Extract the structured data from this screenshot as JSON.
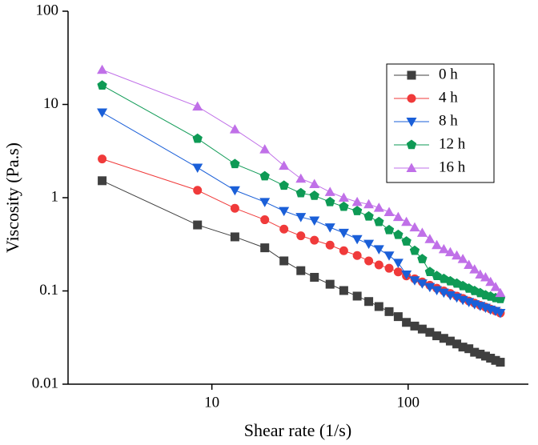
{
  "chart_data": {
    "type": "line",
    "x_label": "Shear rate (1/s)",
    "y_label": "Viscosity (Pa.s)",
    "log_x": true,
    "log_y": true,
    "grid": false,
    "legend_position": "upper right",
    "xlim": [
      1.85,
      410
    ],
    "ylim": [
      0.01,
      100
    ],
    "xticks": [
      10,
      100
    ],
    "yticks": [
      0.01,
      0.1,
      1,
      10,
      100
    ],
    "x": [
      2.76,
      8.45,
      13.1,
      18.6,
      23.3,
      28.4,
      33.3,
      40,
      47,
      55,
      63,
      71,
      80,
      89,
      98,
      108,
      118,
      129,
      140,
      152,
      164,
      177,
      190,
      204,
      218,
      233,
      248,
      263,
      279,
      295
    ],
    "series": [
      {
        "name": "0 h",
        "color": "#3f3f3f",
        "marker": "square",
        "values": [
          1.52,
          0.51,
          0.38,
          0.29,
          0.21,
          0.165,
          0.14,
          0.118,
          0.101,
          0.088,
          0.077,
          0.068,
          0.06,
          0.053,
          0.046,
          0.042,
          0.039,
          0.036,
          0.033,
          0.031,
          0.029,
          0.027,
          0.025,
          0.024,
          0.022,
          0.021,
          0.02,
          0.019,
          0.018,
          0.0172
        ]
      },
      {
        "name": "4 h",
        "color": "#f03a3a",
        "marker": "circle",
        "values": [
          2.6,
          1.2,
          0.77,
          0.58,
          0.46,
          0.39,
          0.35,
          0.31,
          0.27,
          0.24,
          0.21,
          0.19,
          0.175,
          0.16,
          0.145,
          0.135,
          0.125,
          0.115,
          0.107,
          0.1,
          0.094,
          0.088,
          0.083,
          0.078,
          0.074,
          0.07,
          0.067,
          0.064,
          0.061,
          0.058
        ]
      },
      {
        "name": "8 h",
        "color": "#1a5fd8",
        "marker": "triangle-down",
        "values": [
          8.2,
          2.1,
          1.2,
          0.9,
          0.72,
          0.62,
          0.57,
          0.48,
          0.42,
          0.36,
          0.32,
          0.28,
          0.24,
          0.2,
          0.15,
          0.13,
          0.12,
          0.11,
          0.102,
          0.096,
          0.09,
          0.085,
          0.08,
          0.076,
          0.072,
          0.069,
          0.066,
          0.063,
          0.061,
          0.058
        ]
      },
      {
        "name": "12 h",
        "color": "#0e9a55",
        "marker": "pentagon",
        "values": [
          16,
          4.3,
          2.3,
          1.7,
          1.35,
          1.12,
          1.05,
          0.9,
          0.8,
          0.72,
          0.63,
          0.55,
          0.45,
          0.4,
          0.34,
          0.27,
          0.22,
          0.16,
          0.145,
          0.135,
          0.127,
          0.12,
          0.113,
          0.106,
          0.1,
          0.095,
          0.09,
          0.087,
          0.084,
          0.082
        ]
      },
      {
        "name": "16 h",
        "color": "#c070e8",
        "marker": "triangle-up",
        "values": [
          23.5,
          9.5,
          5.4,
          3.3,
          2.2,
          1.6,
          1.4,
          1.15,
          1.0,
          0.9,
          0.85,
          0.78,
          0.7,
          0.62,
          0.55,
          0.48,
          0.42,
          0.36,
          0.31,
          0.28,
          0.26,
          0.24,
          0.22,
          0.19,
          0.17,
          0.15,
          0.14,
          0.125,
          0.11,
          0.095
        ]
      }
    ]
  }
}
